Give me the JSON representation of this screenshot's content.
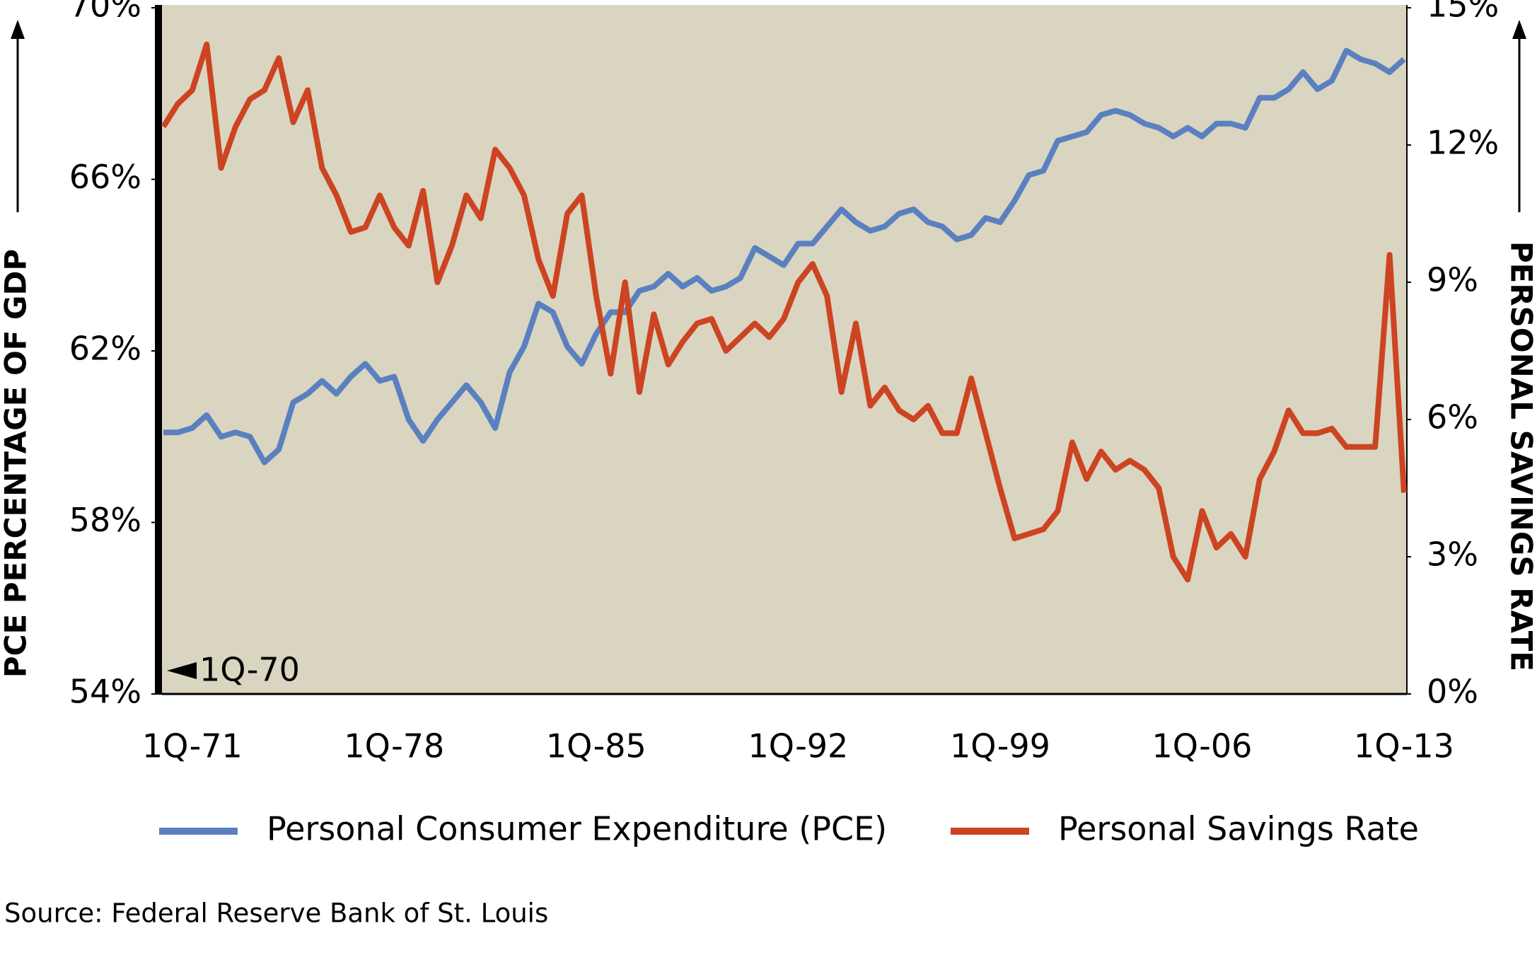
{
  "chart_data": {
    "type": "line",
    "ylabel": "PCE PERCENTAGE OF GDP",
    "y2label": "PERSONAL SAVINGS RATE",
    "annotation": "1Q-70",
    "source": "Source: Federal Reserve Bank of St. Louis",
    "background": "#d9d5c0",
    "categories": [
      null,
      null,
      "1Q-71",
      null,
      null,
      null,
      null,
      null,
      null,
      null,
      null,
      null,
      null,
      null,
      null,
      null,
      "1Q-78",
      null,
      null,
      null,
      null,
      null,
      null,
      null,
      null,
      null,
      null,
      null,
      null,
      null,
      "1Q-85",
      null,
      null,
      null,
      null,
      null,
      null,
      null,
      null,
      null,
      null,
      null,
      null,
      null,
      "1Q-92",
      null,
      null,
      null,
      null,
      null,
      null,
      null,
      null,
      null,
      null,
      null,
      null,
      null,
      "1Q-99",
      null,
      null,
      null,
      null,
      null,
      null,
      null,
      null,
      null,
      null,
      null,
      null,
      null,
      "1Q-06",
      null,
      null,
      null,
      null,
      null,
      null,
      null,
      null,
      null,
      null,
      null,
      null,
      null,
      "1Q-13"
    ],
    "series": [
      {
        "name": "Personal Consumer Expenditure (PCE)",
        "color": "#5b80c0",
        "values": [
          60.1,
          60.1,
          60.2,
          60.5,
          60.0,
          60.1,
          60.0,
          59.4,
          59.7,
          60.8,
          61.0,
          61.3,
          61.0,
          61.4,
          61.7,
          61.3,
          61.4,
          60.4,
          59.9,
          60.4,
          60.8,
          61.2,
          60.8,
          60.2,
          61.5,
          62.1,
          63.1,
          62.9,
          62.1,
          61.7,
          62.4,
          62.9,
          62.9,
          63.4,
          63.5,
          63.8,
          63.5,
          63.7,
          63.4,
          63.5,
          63.7,
          64.4,
          64.2,
          64.0,
          64.5,
          64.5,
          64.9,
          65.3,
          65.0,
          64.8,
          64.9,
          65.2,
          65.3,
          65.0,
          64.9,
          64.6,
          64.7,
          65.1,
          65.0,
          65.5,
          66.1,
          66.2,
          66.9,
          67.0,
          67.1,
          67.5,
          67.6,
          67.5,
          67.3,
          67.2,
          67.0,
          67.2,
          67.0,
          67.3,
          67.3,
          67.2,
          67.9,
          67.9,
          68.1,
          68.5,
          68.1,
          68.3,
          69.0,
          68.8,
          68.7,
          68.5,
          68.8
        ]
      },
      {
        "name": "Personal Savings Rate",
        "color": "#cc4422",
        "axis": "y2",
        "values": [
          12.4,
          12.9,
          13.2,
          14.2,
          11.5,
          12.4,
          13.0,
          13.2,
          13.9,
          12.5,
          13.2,
          11.5,
          10.9,
          10.1,
          10.2,
          10.9,
          10.2,
          9.8,
          11.0,
          9.0,
          9.8,
          10.9,
          10.4,
          11.9,
          11.5,
          10.9,
          9.5,
          8.7,
          10.5,
          10.9,
          8.7,
          7.0,
          9.0,
          6.6,
          8.3,
          7.2,
          7.7,
          8.1,
          8.2,
          7.5,
          7.8,
          8.1,
          7.8,
          8.2,
          9.0,
          9.4,
          8.7,
          6.6,
          8.1,
          6.3,
          6.7,
          6.2,
          6.0,
          6.3,
          5.7,
          5.7,
          6.9,
          5.7,
          4.5,
          3.4,
          3.5,
          3.6,
          4.0,
          5.5,
          4.7,
          5.3,
          4.9,
          5.1,
          4.9,
          4.5,
          3.0,
          2.5,
          4.0,
          3.2,
          3.5,
          3.0,
          4.7,
          5.3,
          6.2,
          5.7,
          5.7,
          5.8,
          5.4,
          5.4,
          5.4,
          9.6,
          4.4
        ]
      }
    ],
    "ylim": [
      54,
      70
    ],
    "yticks": [
      {
        "value": 54,
        "label": "54%"
      },
      {
        "value": 58,
        "label": "58%"
      },
      {
        "value": 62,
        "label": "62%"
      },
      {
        "value": 66,
        "label": "66%"
      },
      {
        "value": 70,
        "label": "70%"
      }
    ],
    "y2lim": [
      0,
      15
    ],
    "y2ticks": [
      {
        "value": 0,
        "label": "0%"
      },
      {
        "value": 3,
        "label": "3%"
      },
      {
        "value": 6,
        "label": "6%"
      },
      {
        "value": 9,
        "label": "9%"
      },
      {
        "value": 12,
        "label": "12%"
      },
      {
        "value": 15,
        "label": "15%"
      }
    ]
  }
}
